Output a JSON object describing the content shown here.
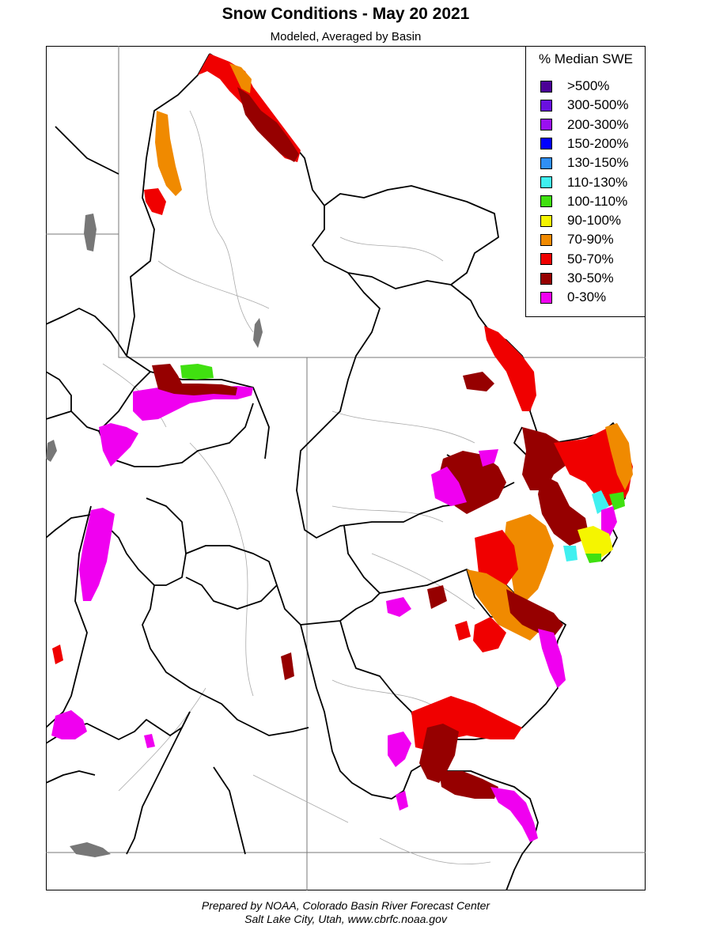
{
  "header": {
    "title": "Snow Conditions - May 20 2021",
    "subtitle": "Modeled, Averaged by Basin"
  },
  "legend": {
    "title": "% Median SWE",
    "items": [
      {
        "label": ">500%",
        "color": "#4b0096"
      },
      {
        "label": "300-500%",
        "color": "#6a10e0"
      },
      {
        "label": "200-300%",
        "color": "#9a10f0"
      },
      {
        "label": "150-200%",
        "color": "#0000ff"
      },
      {
        "label": "130-150%",
        "color": "#2f8ff5"
      },
      {
        "label": "110-130%",
        "color": "#40f0f0"
      },
      {
        "label": "100-110%",
        "color": "#40e010"
      },
      {
        "label": "90-100%",
        "color": "#f5f500"
      },
      {
        "label": "70-90%",
        "color": "#f08a00"
      },
      {
        "label": "50-70%",
        "color": "#f00000"
      },
      {
        "label": "30-50%",
        "color": "#960000"
      },
      {
        "label": "0-30%",
        "color": "#f000f0"
      }
    ]
  },
  "footer": {
    "line1": "Prepared by NOAA, Colorado Basin River Forecast Center",
    "line2": "Salt Lake City, Utah, www.cbrfc.noaa.gov"
  }
}
